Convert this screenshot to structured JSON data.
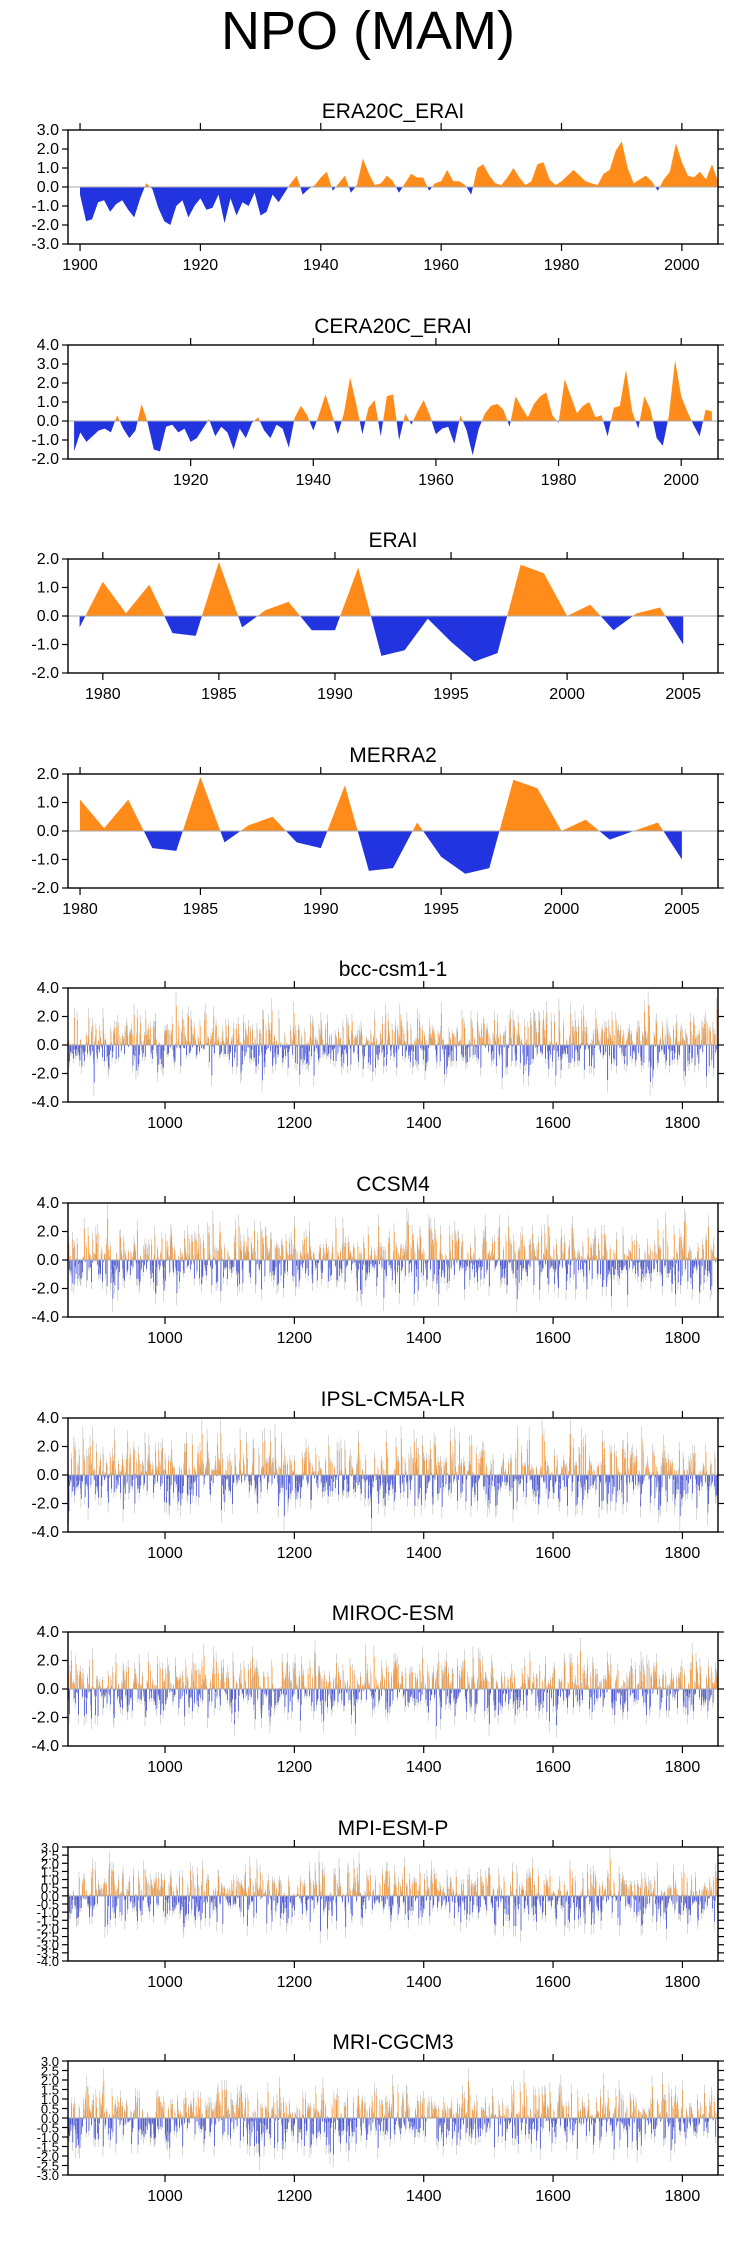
{
  "page_title": "NPO (MAM)",
  "colors": {
    "positive": "#ff8c1a",
    "negative": "#2233e0",
    "axis": "#000000",
    "zero": "#aaaaaa",
    "spike": "#bdbdbd"
  },
  "chart_data": [
    {
      "type": "area",
      "title": "ERA20C_ERAI",
      "xlim": [
        1898,
        2006
      ],
      "ylim": [
        -3,
        3
      ],
      "yticks": [
        -3,
        -2,
        -1,
        0,
        1,
        2,
        3
      ],
      "ytick_labels": [
        "-3.0",
        "-2.0",
        "-1.0",
        "0.0",
        "1.0",
        "2.0",
        "3.0"
      ],
      "xticks": [
        1900,
        1920,
        1940,
        1960,
        1980,
        2000
      ],
      "xtick_labels": [
        "1900",
        "1920",
        "1940",
        "1960",
        "1980",
        "2000"
      ],
      "x_start": 1900,
      "x_step": 1,
      "values": [
        -0.4,
        -1.8,
        -1.7,
        -0.8,
        -0.7,
        -1.3,
        -0.9,
        -0.7,
        -1.2,
        -1.6,
        -0.6,
        0.2,
        -0.1,
        -1.1,
        -1.8,
        -2.0,
        -1.0,
        -0.7,
        -1.6,
        -1.0,
        -0.6,
        -1.2,
        -1.1,
        -0.4,
        -1.9,
        -0.6,
        -1.5,
        -0.8,
        -1.0,
        -0.3,
        -1.5,
        -1.3,
        -0.4,
        -0.8,
        -0.3,
        0.2,
        0.6,
        -0.4,
        -0.1,
        0.1,
        0.5,
        0.8,
        -0.2,
        0.2,
        0.6,
        -0.3,
        0.1,
        1.5,
        0.7,
        0.1,
        0.2,
        0.6,
        0.3,
        -0.3,
        0.2,
        0.7,
        0.5,
        0.5,
        -0.2,
        0.2,
        0.3,
        0.9,
        0.3,
        0.3,
        0.1,
        -0.4,
        1.0,
        1.2,
        0.6,
        0.2,
        0.1,
        0.5,
        1.0,
        0.5,
        0.1,
        0.3,
        1.2,
        1.3,
        0.4,
        0.1,
        0.3,
        0.6,
        0.9,
        0.6,
        0.3,
        0.2,
        0.1,
        0.7,
        0.9,
        1.9,
        2.4,
        1.0,
        0.2,
        0.4,
        0.6,
        0.3,
        -0.2,
        0.4,
        0.8,
        2.3,
        1.3,
        0.6,
        0.5,
        0.8,
        0.4,
        1.2,
        0.3
      ]
    },
    {
      "type": "area",
      "title": "CERA20C_ERAI",
      "xlim": [
        1900,
        2006
      ],
      "ylim": [
        -2,
        4
      ],
      "yticks": [
        -2,
        -1,
        0,
        1,
        2,
        3,
        4
      ],
      "ytick_labels": [
        "-2.0",
        "-1.0",
        "0.0",
        "1.0",
        "2.0",
        "3.0",
        "4.0"
      ],
      "xticks": [
        1920,
        1940,
        1960,
        1980,
        2000
      ],
      "xtick_labels": [
        "1920",
        "1940",
        "1960",
        "1980",
        "2000"
      ],
      "x_start": 1901,
      "x_step": 1,
      "values": [
        -1.6,
        -0.6,
        -1.1,
        -0.8,
        -0.5,
        -0.4,
        -0.6,
        0.3,
        -0.4,
        -0.9,
        -0.5,
        0.9,
        -0.1,
        -1.5,
        -1.6,
        -0.3,
        -0.2,
        -0.6,
        -0.4,
        -1.1,
        -0.9,
        -0.4,
        0.1,
        -0.8,
        -0.3,
        -0.6,
        -1.5,
        -0.4,
        -0.9,
        -0.1,
        0.2,
        -0.5,
        -0.9,
        -0.2,
        -0.4,
        -1.4,
        0.2,
        0.8,
        0.3,
        -0.5,
        0.4,
        1.4,
        0.4,
        -0.7,
        0.4,
        2.3,
        0.9,
        -0.7,
        0.7,
        1.1,
        -0.8,
        1.3,
        1.4,
        -1.0,
        0.4,
        -0.2,
        0.5,
        1.1,
        0.3,
        -0.7,
        -0.4,
        -0.3,
        -1.2,
        0.3,
        -0.5,
        -1.8,
        -0.4,
        0.4,
        0.8,
        0.9,
        0.6,
        -0.3,
        1.3,
        0.7,
        0.2,
        0.9,
        1.3,
        1.5,
        0.3,
        -0.1,
        2.2,
        1.3,
        0.4,
        0.8,
        1.0,
        0.2,
        0.3,
        -0.8,
        0.7,
        0.8,
        2.7,
        0.5,
        -0.4,
        1.3,
        0.6,
        -0.9,
        -1.3,
        0.3,
        3.2,
        1.3,
        0.5,
        -0.2,
        -0.8,
        0.6,
        0.5
      ]
    },
    {
      "type": "area",
      "title": "ERAI",
      "xlim": [
        1978.5,
        2006.5
      ],
      "ylim": [
        -2,
        2
      ],
      "yticks": [
        -2,
        -1,
        0,
        1,
        2
      ],
      "ytick_labels": [
        "-2.0",
        "-1.0",
        "0.0",
        "1.0",
        "2.0"
      ],
      "xticks": [
        1980,
        1985,
        1990,
        1995,
        2000,
        2005
      ],
      "xtick_labels": [
        "1980",
        "1985",
        "1990",
        "1995",
        "2000",
        "2005"
      ],
      "x_start": 1979,
      "x_step": 1,
      "values": [
        -0.4,
        1.2,
        0.1,
        1.1,
        -0.6,
        -0.7,
        1.9,
        -0.4,
        0.2,
        0.5,
        -0.5,
        -0.5,
        1.7,
        -1.4,
        -1.2,
        -0.1,
        -0.9,
        -1.6,
        -1.3,
        1.8,
        1.5,
        0.0,
        0.4,
        -0.5,
        0.1,
        0.3,
        -1.0
      ]
    },
    {
      "type": "area",
      "title": "MERRA2",
      "xlim": [
        1979.5,
        2006.5
      ],
      "ylim": [
        -2,
        2
      ],
      "yticks": [
        -2,
        -1,
        0,
        1,
        2
      ],
      "ytick_labels": [
        "-2.0",
        "-1.0",
        "0.0",
        "1.0",
        "2.0"
      ],
      "xticks": [
        1980,
        1985,
        1990,
        1995,
        2000,
        2005
      ],
      "xtick_labels": [
        "1980",
        "1985",
        "1990",
        "1995",
        "2000",
        "2005"
      ],
      "x_start": 1980,
      "x_step": 1,
      "values": [
        1.1,
        0.1,
        1.1,
        -0.6,
        -0.7,
        1.9,
        -0.4,
        0.2,
        0.5,
        -0.4,
        -0.6,
        1.6,
        -1.4,
        -1.3,
        0.3,
        -0.9,
        -1.5,
        -1.3,
        1.8,
        1.5,
        0.0,
        0.4,
        -0.3,
        0.0,
        0.3,
        -1.0
      ]
    },
    {
      "type": "bar",
      "title": "bcc-csm1-1",
      "xlim": [
        850,
        1855
      ],
      "ylim": [
        -4,
        4
      ],
      "yticks": [
        -4,
        -2,
        0,
        2,
        4
      ],
      "ytick_labels": [
        "-4.0",
        "-2.0",
        "0.0",
        "2.0",
        "4.0"
      ],
      "xticks": [
        1000,
        1200,
        1400,
        1600,
        1800
      ],
      "xtick_labels": [
        "1000",
        "1200",
        "1400",
        "1600",
        "1800"
      ],
      "x_start": 850,
      "x_step": 1,
      "seed": 11,
      "amp": 1.2,
      "pos_bias": 0.0
    },
    {
      "type": "bar",
      "title": "CCSM4",
      "xlim": [
        850,
        1855
      ],
      "ylim": [
        -4,
        4
      ],
      "yticks": [
        -4,
        -2,
        0,
        2,
        4
      ],
      "ytick_labels": [
        "-4.0",
        "-2.0",
        "0.0",
        "2.0",
        "4.0"
      ],
      "xticks": [
        1000,
        1200,
        1400,
        1600,
        1800
      ],
      "xtick_labels": [
        "1000",
        "1200",
        "1400",
        "1600",
        "1800"
      ],
      "x_start": 850,
      "x_step": 1,
      "seed": 23,
      "amp": 1.3,
      "pos_bias": 0.0
    },
    {
      "type": "bar",
      "title": "IPSL-CM5A-LR",
      "xlim": [
        850,
        1855
      ],
      "ylim": [
        -4,
        4
      ],
      "yticks": [
        -4,
        -2,
        0,
        2,
        4
      ],
      "ytick_labels": [
        "-4.0",
        "-2.0",
        "0.0",
        "2.0",
        "4.0"
      ],
      "xticks": [
        1000,
        1200,
        1400,
        1600,
        1800
      ],
      "xtick_labels": [
        "1000",
        "1200",
        "1400",
        "1600",
        "1800"
      ],
      "x_start": 850,
      "x_step": 1,
      "seed": 37,
      "amp": 1.4,
      "pos_bias": 0.0
    },
    {
      "type": "bar",
      "title": "MIROC-ESM",
      "xlim": [
        850,
        1855
      ],
      "ylim": [
        -4,
        4
      ],
      "yticks": [
        -4,
        -2,
        0,
        2,
        4
      ],
      "ytick_labels": [
        "-4.0",
        "-2.0",
        "0.0",
        "2.0",
        "4.0"
      ],
      "xticks": [
        1000,
        1200,
        1400,
        1600,
        1800
      ],
      "xtick_labels": [
        "1000",
        "1200",
        "1400",
        "1600",
        "1800"
      ],
      "x_start": 850,
      "x_step": 1,
      "seed": 41,
      "amp": 1.2,
      "pos_bias": 0.0
    },
    {
      "type": "bar",
      "title": "MPI-ESM-P",
      "xlim": [
        850,
        1855
      ],
      "ylim": [
        -4,
        3
      ],
      "yticks": [
        -4,
        -3.5,
        -3,
        -2.5,
        -2,
        -1.5,
        -1,
        -0.5,
        0,
        0.5,
        1,
        1.5,
        2,
        2.5,
        3
      ],
      "ytick_labels": [
        "-4.0",
        "-3.5",
        "-3.0",
        "-2.5",
        "-2.0",
        "-1.5",
        "-1.0",
        "-0.5",
        "0.0",
        "0.5",
        "1.0",
        "1.5",
        "2.0",
        "2.5",
        "3.0"
      ],
      "xticks": [
        1000,
        1200,
        1400,
        1600,
        1800
      ],
      "xtick_labels": [
        "1000",
        "1200",
        "1400",
        "1600",
        "1800"
      ],
      "x_start": 850,
      "x_step": 1,
      "seed": 53,
      "amp": 1.0,
      "pos_bias": 0.0
    },
    {
      "type": "bar",
      "title": "MRI-CGCM3",
      "xlim": [
        850,
        1855
      ],
      "ylim": [
        -3,
        3
      ],
      "yticks": [
        -3,
        -2.5,
        -2,
        -1.5,
        -1,
        -0.5,
        0,
        0.5,
        1,
        1.5,
        2,
        2.5,
        3
      ],
      "ytick_labels": [
        "-3.0",
        "-2.5",
        "-2.0",
        "-1.5",
        "-1.0",
        "-0.5",
        "0.0",
        "0.5",
        "1.0",
        "1.5",
        "2.0",
        "2.5",
        "3.0"
      ],
      "xticks": [
        1000,
        1200,
        1400,
        1600,
        1800
      ],
      "xtick_labels": [
        "1000",
        "1200",
        "1400",
        "1600",
        "1800"
      ],
      "x_start": 850,
      "x_step": 1,
      "seed": 67,
      "amp": 0.9,
      "pos_bias": 0.0
    }
  ]
}
